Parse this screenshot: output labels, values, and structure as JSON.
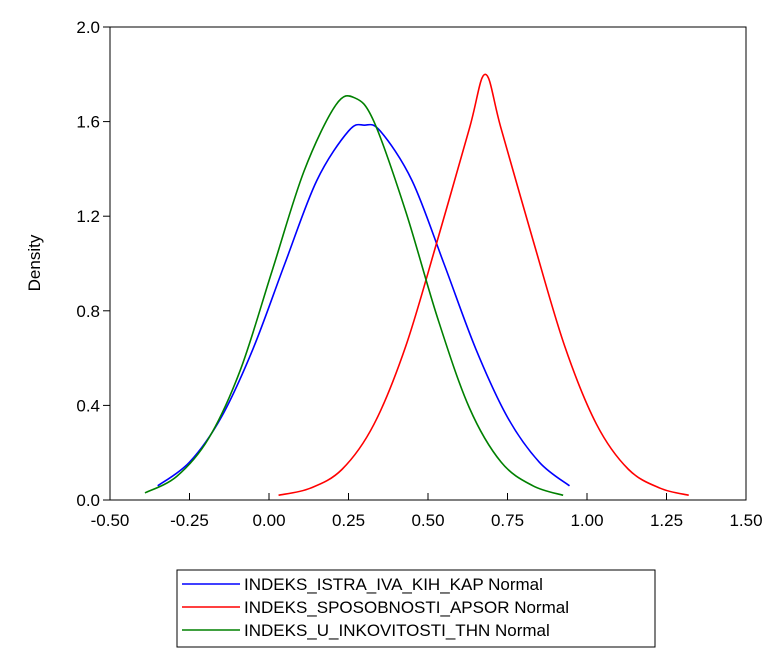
{
  "chart_data": {
    "type": "line",
    "title": "",
    "xlabel": "",
    "ylabel": "Density",
    "xlim": [
      -0.5,
      1.5
    ],
    "ylim": [
      0.0,
      2.0
    ],
    "x_ticks": [
      -0.5,
      -0.25,
      0.0,
      0.25,
      0.5,
      0.75,
      1.0,
      1.25,
      1.5
    ],
    "x_tick_labels": [
      "-0.50",
      "-0.25",
      "0.00",
      "0.25",
      "0.50",
      "0.75",
      "1.00",
      "1.25",
      "1.50"
    ],
    "y_ticks": [
      0.0,
      0.4,
      0.8,
      1.2,
      1.6,
      2.0
    ],
    "y_tick_labels": [
      "0.0",
      "0.4",
      "0.8",
      "1.2",
      "1.6",
      "2.0"
    ],
    "grid": false,
    "legend_position": "bottom-center",
    "series": [
      {
        "name": "INDEKS_ISTRA_IVA_KIH_KAP Normal",
        "color": "#0000ff",
        "x": [
          -0.35,
          -0.25,
          -0.15,
          -0.05,
          0.05,
          0.15,
          0.25,
          0.3,
          0.35,
          0.45,
          0.55,
          0.65,
          0.75,
          0.85,
          0.945
        ],
        "y": [
          0.06,
          0.16,
          0.35,
          0.64,
          1.0,
          1.35,
          1.56,
          1.585,
          1.56,
          1.35,
          1.0,
          0.64,
          0.35,
          0.16,
          0.06
        ]
      },
      {
        "name": "INDEKS_SPOSOBNOSTI_APSOR Normal",
        "color": "#ff0000",
        "x": [
          0.03,
          0.13,
          0.23,
          0.33,
          0.43,
          0.53,
          0.63,
          0.68,
          0.73,
          0.83,
          0.93,
          1.03,
          1.13,
          1.23,
          1.32
        ],
        "y": [
          0.02,
          0.05,
          0.13,
          0.32,
          0.65,
          1.1,
          1.57,
          1.8,
          1.57,
          1.1,
          0.65,
          0.32,
          0.13,
          0.05,
          0.02
        ]
      },
      {
        "name": "INDEKS_U_INKOVITOSTI_THN Normal",
        "color": "#008000",
        "x": [
          -0.39,
          -0.29,
          -0.19,
          -0.09,
          0.01,
          0.11,
          0.21,
          0.27,
          0.33,
          0.43,
          0.53,
          0.63,
          0.73,
          0.83,
          0.925
        ],
        "y": [
          0.03,
          0.1,
          0.26,
          0.55,
          0.97,
          1.39,
          1.67,
          1.7,
          1.6,
          1.22,
          0.77,
          0.39,
          0.16,
          0.06,
          0.02
        ]
      }
    ]
  }
}
